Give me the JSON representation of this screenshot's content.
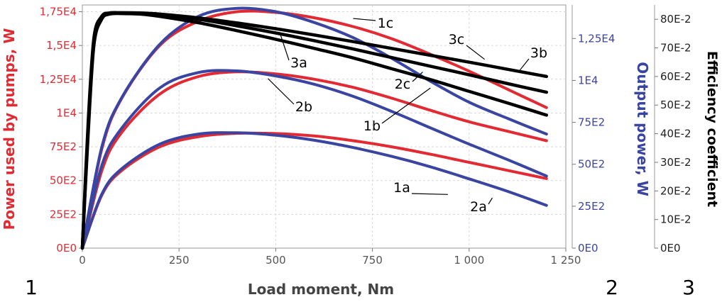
{
  "chart_data": {
    "type": "line",
    "xlabel": "Load moment, Nm",
    "x_ticks": [
      "0",
      "250",
      "500",
      "750",
      "1 000",
      "1 250"
    ],
    "xlim": [
      0,
      1250
    ],
    "grid": true,
    "axes": {
      "y1": {
        "label": "Power used by pumps, W",
        "color": "#e32a33",
        "lim": [
          0,
          18000
        ],
        "ticks": [
          {
            "v": 0,
            "label": "0E0"
          },
          {
            "v": 2500,
            "label": "25E2"
          },
          {
            "v": 5000,
            "label": "50E2"
          },
          {
            "v": 7500,
            "label": "75E2"
          },
          {
            "v": 10000,
            "label": "1E4"
          },
          {
            "v": 12500,
            "label": "1,25E4"
          },
          {
            "v": 15000,
            "label": "1,5E4"
          },
          {
            "v": 17500,
            "label": "1,75E4"
          }
        ]
      },
      "y2": {
        "label": "Output power, W",
        "color": "#3a45a2",
        "lim": [
          0,
          14500
        ],
        "ticks": [
          {
            "v": 0,
            "label": "0E0"
          },
          {
            "v": 2500,
            "label": "25E2"
          },
          {
            "v": 5000,
            "label": "50E2"
          },
          {
            "v": 7500,
            "label": "75E2"
          },
          {
            "v": 10000,
            "label": "1E4"
          },
          {
            "v": 12500,
            "label": "1,25E4"
          }
        ]
      },
      "y3": {
        "label": "Efficiency coefficient",
        "color": "#000000",
        "lim": [
          0,
          0.85
        ],
        "ticks": [
          {
            "v": 0,
            "label": "0E0"
          },
          {
            "v": 0.1,
            "label": "10E-2"
          },
          {
            "v": 0.2,
            "label": "20E-2"
          },
          {
            "v": 0.3,
            "label": "30E-2"
          },
          {
            "v": 0.4,
            "label": "40E-2"
          },
          {
            "v": 0.5,
            "label": "50E-2"
          },
          {
            "v": 0.6,
            "label": "60E-2"
          },
          {
            "v": 0.7,
            "label": "70E-2"
          },
          {
            "v": 0.8,
            "label": "80E-2"
          }
        ]
      }
    },
    "series": [
      {
        "axis": "y1",
        "color": "#e32a33",
        "x": [
          0,
          50,
          100,
          200,
          300,
          400,
          500,
          600,
          700,
          800,
          900,
          1000,
          1100,
          1200
        ],
        "values": [
          0,
          3900,
          5700,
          7500,
          8250,
          8500,
          8480,
          8300,
          7950,
          7500,
          6950,
          6350,
          5750,
          5150
        ]
      },
      {
        "axis": "y1",
        "color": "#e32a33",
        "x": [
          0,
          50,
          100,
          200,
          300,
          400,
          500,
          600,
          700,
          800,
          900,
          1000,
          1100,
          1200
        ],
        "values": [
          0,
          5700,
          8500,
          11400,
          12700,
          13050,
          12900,
          12500,
          11900,
          11100,
          10200,
          9350,
          8650,
          7950
        ]
      },
      {
        "axis": "y1",
        "color": "#e32a33",
        "x": [
          0,
          50,
          100,
          200,
          300,
          400,
          500,
          600,
          700,
          800,
          900,
          1000,
          1100,
          1200
        ],
        "values": [
          0,
          7300,
          11000,
          15000,
          16800,
          17500,
          17450,
          17050,
          16400,
          15500,
          14350,
          13100,
          11750,
          10400
        ]
      },
      {
        "axis": "y2",
        "color": "#3a45a2",
        "x": [
          0,
          50,
          100,
          200,
          300,
          400,
          500,
          600,
          700,
          800,
          900,
          1000,
          1100,
          1200
        ],
        "values": [
          0,
          3200,
          4700,
          6200,
          6800,
          6880,
          6730,
          6430,
          6000,
          5470,
          4850,
          4130,
          3380,
          2550
        ]
      },
      {
        "axis": "y2",
        "color": "#3a45a2",
        "x": [
          0,
          50,
          100,
          200,
          300,
          400,
          500,
          600,
          700,
          800,
          900,
          1000,
          1100,
          1200
        ],
        "values": [
          0,
          4900,
          7100,
          9550,
          10470,
          10570,
          10270,
          9770,
          9050,
          8150,
          7170,
          6200,
          5270,
          4300
        ]
      },
      {
        "axis": "y2",
        "color": "#3a45a2",
        "x": [
          0,
          50,
          100,
          200,
          300,
          400,
          500,
          600,
          700,
          800,
          900,
          1000,
          1100,
          1200
        ],
        "values": [
          0,
          6000,
          8900,
          12150,
          13820,
          14300,
          14100,
          13450,
          12550,
          11320,
          9950,
          8700,
          7730,
          6800
        ]
      },
      {
        "axis": "y3",
        "color": "#000000",
        "x": [
          0,
          15,
          30,
          50,
          70,
          100,
          150,
          200,
          300,
          400,
          500,
          600,
          700,
          800,
          900,
          1000,
          1100,
          1200
        ],
        "values": [
          0,
          0.4,
          0.71,
          0.8,
          0.818,
          0.82,
          0.818,
          0.81,
          0.788,
          0.76,
          0.73,
          0.698,
          0.665,
          0.627,
          0.589,
          0.548,
          0.507,
          0.465
        ]
      },
      {
        "axis": "y3",
        "color": "#000000",
        "x": [
          0,
          15,
          30,
          50,
          70,
          100,
          150,
          200,
          300,
          400,
          500,
          600,
          700,
          800,
          900,
          1000,
          1100,
          1200
        ],
        "values": [
          0,
          0.42,
          0.725,
          0.805,
          0.82,
          0.822,
          0.82,
          0.815,
          0.8,
          0.777,
          0.752,
          0.725,
          0.696,
          0.666,
          0.636,
          0.606,
          0.575,
          0.545
        ]
      },
      {
        "axis": "y3",
        "color": "#000000",
        "x": [
          0,
          15,
          30,
          50,
          70,
          100,
          150,
          200,
          300,
          400,
          500,
          600,
          700,
          800,
          900,
          1000,
          1100,
          1200
        ],
        "values": [
          0,
          0.44,
          0.735,
          0.81,
          0.822,
          0.823,
          0.822,
          0.818,
          0.805,
          0.787,
          0.767,
          0.745,
          0.722,
          0.698,
          0.674,
          0.65,
          0.625,
          0.6
        ]
      }
    ],
    "annotations": [
      {
        "text": "1a",
        "color": "#000000",
        "x": 945,
        "axis": "y2",
        "pointer": 3200
      },
      {
        "text": "1b",
        "color": "#000000",
        "x": 900,
        "axis": "y2",
        "pointer": 9550
      },
      {
        "text": "1c",
        "color": "#000000",
        "x": 700,
        "axis": "y1",
        "pointer": 17000
      },
      {
        "text": "2a",
        "color": "#000000",
        "x": 1060,
        "axis": "y2",
        "pointer": 3000
      },
      {
        "text": "2b",
        "color": "#000000",
        "x": 480,
        "axis": "y1",
        "pointer": 12550
      },
      {
        "text": "2c",
        "color": "#000000",
        "x": 880,
        "axis": "y2",
        "pointer": 10500
      },
      {
        "text": "3a",
        "color": "#000000",
        "x": 510,
        "axis": "y3",
        "pointer": 0.755
      },
      {
        "text": "3b",
        "color": "#000000",
        "x": 1130,
        "axis": "y3",
        "pointer": 0.62
      },
      {
        "text": "3c",
        "color": "#000000",
        "x": 1040,
        "axis": "y3",
        "pointer": 0.66
      }
    ]
  },
  "panel_numbers": [
    "1",
    "2",
    "3"
  ]
}
